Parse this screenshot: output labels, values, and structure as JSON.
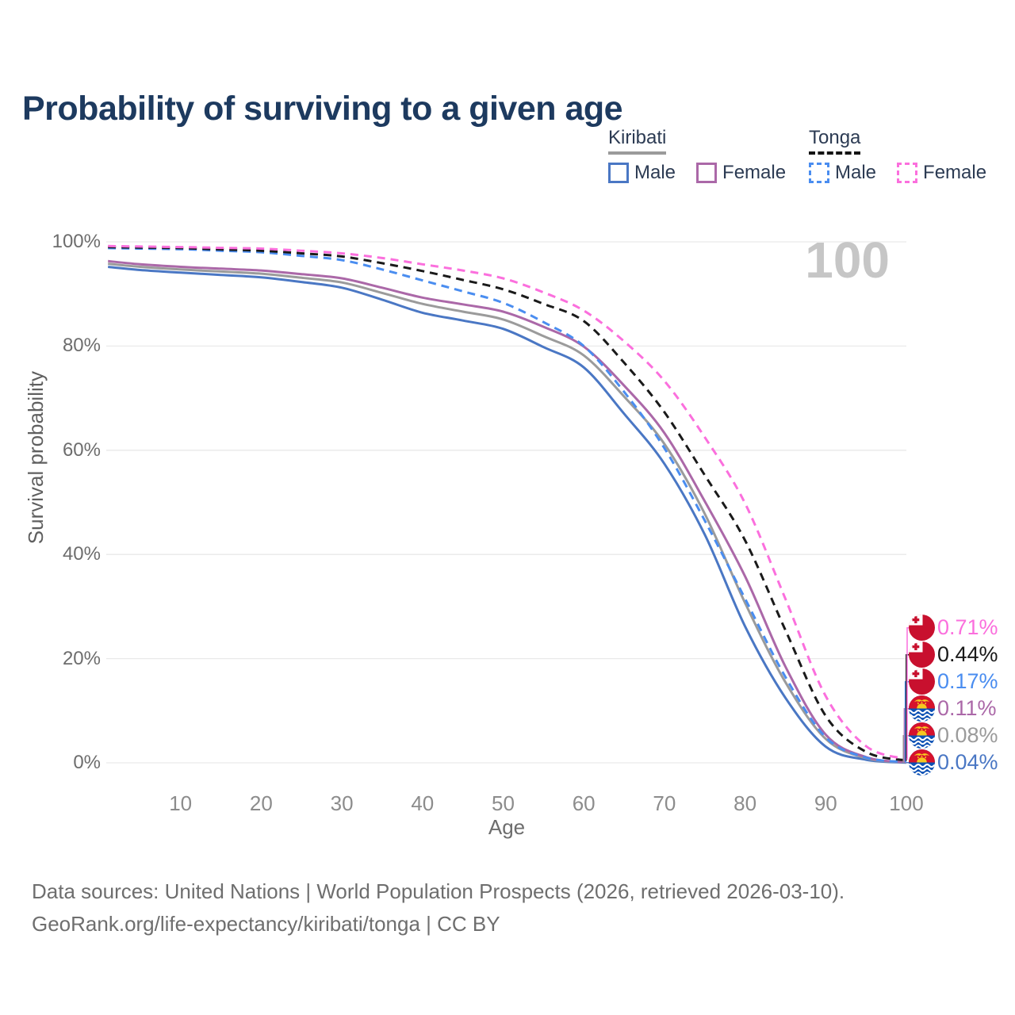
{
  "title": "Probability of surviving to a given age",
  "watermark": "100",
  "legend": {
    "groups": [
      {
        "key": "kiribati",
        "name": "Kiribati",
        "line_style": "solid",
        "line_color": "#9b9b9b",
        "items": [
          {
            "key": "male",
            "label": "Male",
            "color": "#4a77c4",
            "line_style": "solid"
          },
          {
            "key": "female",
            "label": "Female",
            "color": "#ab68a8",
            "line_style": "solid"
          }
        ]
      },
      {
        "key": "tonga",
        "name": "Tonga",
        "line_style": "dashed",
        "line_color": "#141414",
        "items": [
          {
            "key": "male",
            "label": "Male",
            "color": "#4a8df0",
            "line_style": "dashed"
          },
          {
            "key": "female",
            "label": "Female",
            "color": "#fb6fdd",
            "line_style": "dashed"
          }
        ]
      }
    ]
  },
  "chart_data": {
    "type": "line",
    "title": "Probability of surviving to a given age",
    "xlabel": "Age",
    "ylabel": "Survival probability",
    "xlim": [
      0,
      100
    ],
    "ylim": [
      0,
      100
    ],
    "grid": "horizontal",
    "legend_position": "top-right",
    "x_ticks": [
      10,
      20,
      30,
      40,
      50,
      60,
      70,
      80,
      90,
      100
    ],
    "y_ticks": [
      0,
      20,
      40,
      60,
      80,
      100
    ],
    "y_tick_suffix": "%",
    "x": [
      1,
      5,
      10,
      15,
      20,
      25,
      30,
      35,
      40,
      45,
      50,
      55,
      60,
      65,
      70,
      75,
      80,
      85,
      90,
      95,
      100
    ],
    "series": [
      {
        "name": "Tonga Female",
        "flag": "tonga",
        "color": "#fb6fdd",
        "dashed": true,
        "end_label": "0.71%",
        "values": [
          99.2,
          99.1,
          99.0,
          98.85,
          98.7,
          98.3,
          97.8,
          96.9,
          95.7,
          94.5,
          93.0,
          90.3,
          86.8,
          80.9,
          73.3,
          62.5,
          49.8,
          31.5,
          12.8,
          3.2,
          0.71
        ]
      },
      {
        "name": "Tonga",
        "flag": "tonga",
        "color": "#1a1a1a",
        "dashed": true,
        "end_label": "0.44%",
        "values": [
          99.0,
          98.9,
          98.8,
          98.55,
          98.3,
          97.8,
          97.2,
          95.9,
          94.4,
          92.7,
          90.9,
          88.1,
          84.8,
          76.8,
          67.3,
          55.2,
          42.7,
          25.5,
          9.0,
          2.1,
          0.44
        ]
      },
      {
        "name": "Tonga Male",
        "flag": "tonga",
        "color": "#4a8df0",
        "dashed": true,
        "end_label": "0.17%",
        "values": [
          98.8,
          98.7,
          98.6,
          98.3,
          98.0,
          97.3,
          96.5,
          94.7,
          92.6,
          90.5,
          88.3,
          84.6,
          80.0,
          71.2,
          60.4,
          46.5,
          31.5,
          16.5,
          4.9,
          1.0,
          0.17
        ]
      },
      {
        "name": "Kiribati Female",
        "flag": "kiribati",
        "color": "#ab68a8",
        "dashed": false,
        "end_label": "0.11%",
        "values": [
          96.3,
          95.7,
          95.2,
          94.85,
          94.5,
          93.8,
          93.0,
          91.2,
          89.3,
          88.0,
          86.6,
          83.7,
          79.9,
          72.4,
          63.3,
          50.2,
          35.8,
          18.5,
          5.4,
          1.1,
          0.11
        ]
      },
      {
        "name": "Kiribati",
        "flag": "kiribati",
        "color": "#9b9b9b",
        "dashed": false,
        "end_label": "0.08%",
        "values": [
          95.8,
          95.2,
          94.7,
          94.3,
          93.9,
          93.1,
          92.2,
          90.2,
          88.1,
          86.6,
          85.1,
          81.9,
          78.2,
          70.3,
          61.2,
          47.8,
          30.7,
          15.5,
          4.6,
          0.9,
          0.08
        ]
      },
      {
        "name": "Kiribati Male",
        "flag": "kiribati",
        "color": "#4a77c4",
        "dashed": false,
        "end_label": "0.04%",
        "values": [
          95.2,
          94.6,
          94.1,
          93.65,
          93.2,
          92.3,
          91.2,
          88.9,
          86.4,
          84.9,
          83.3,
          79.8,
          75.9,
          67.0,
          57.4,
          43.8,
          26.2,
          12.5,
          3.1,
          0.6,
          0.04
        ]
      }
    ]
  },
  "footer": {
    "line1": "Data sources: United Nations | World Population Prospects (2026, retrieved 2026-03-10).",
    "line2": "GeoRank.org/life-expectancy/kiribati/tonga | CC BY"
  }
}
